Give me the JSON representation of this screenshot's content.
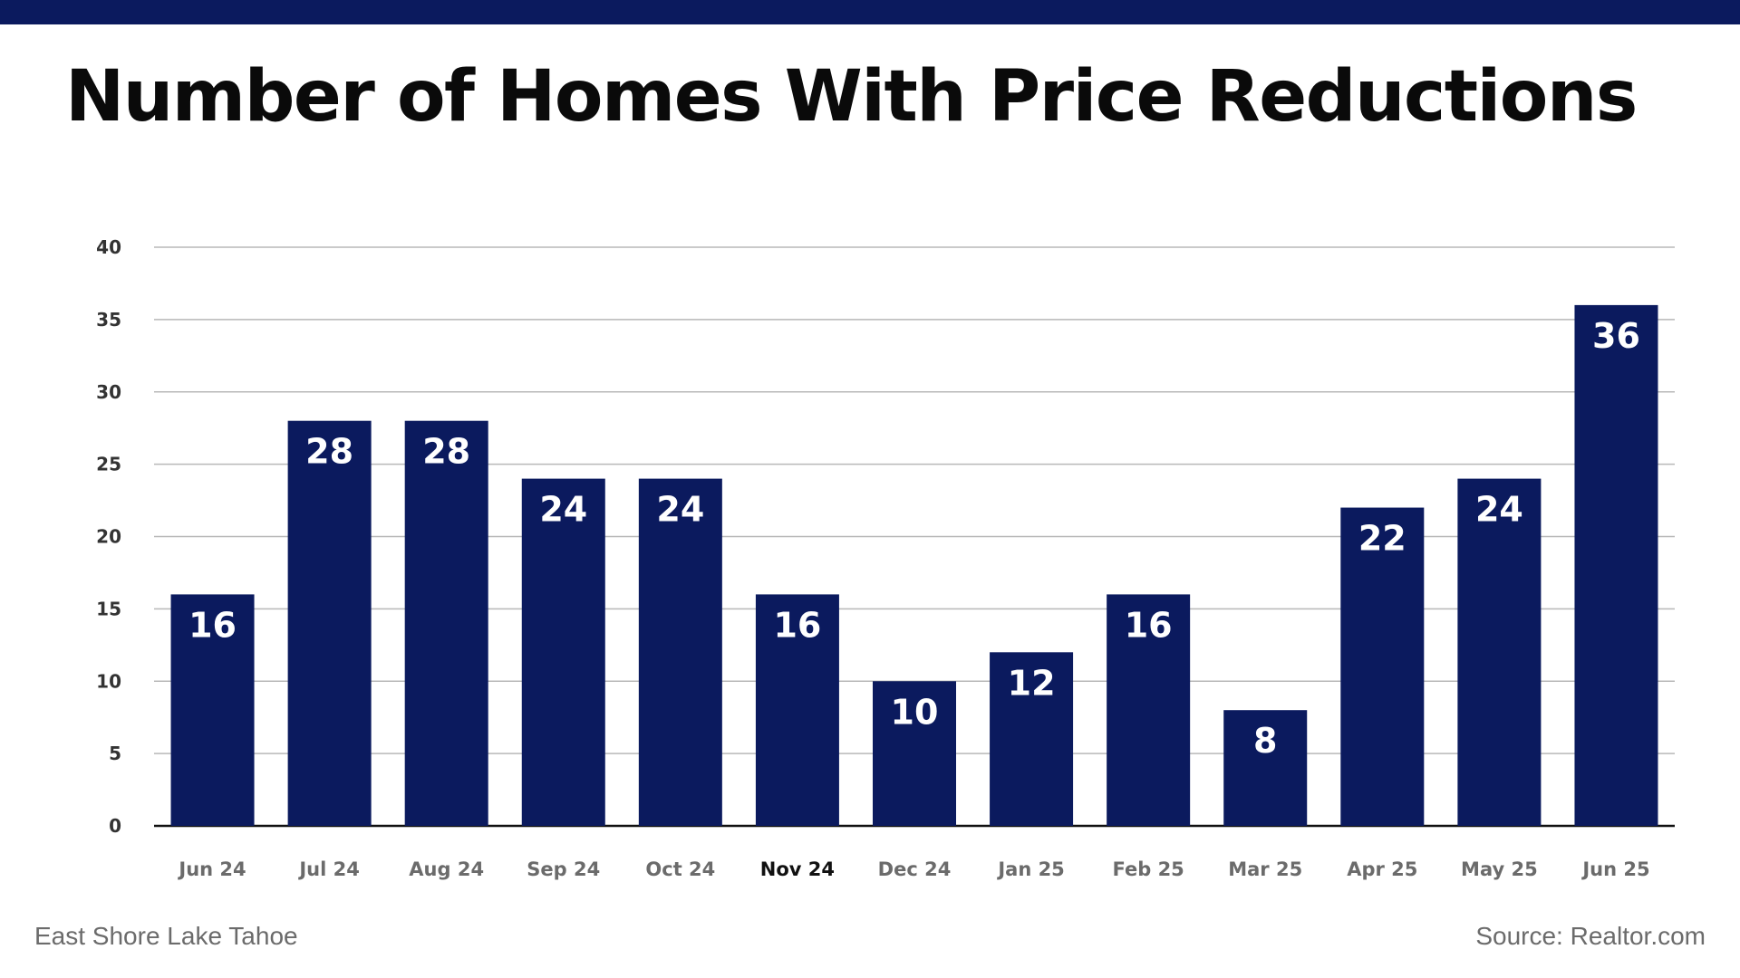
{
  "colors": {
    "bar": "#0b1a5e",
    "top_bar": "#0b1a5e",
    "grid": "#b8b8b8",
    "axis": "#111111",
    "tick_label": "#6b6b6b",
    "tick_label_highlight": "#111111",
    "bar_label": "#ffffff"
  },
  "footer": {
    "left": "East Shore Lake Tahoe",
    "right": "Source: Realtor.com"
  },
  "chart_data": {
    "type": "bar",
    "title": "Number of Homes With Price Reductions",
    "categories": [
      "Jun 24",
      "Jul 24",
      "Aug 24",
      "Sep 24",
      "Oct 24",
      "Nov 24",
      "Dec 24",
      "Jan 25",
      "Feb 25",
      "Mar 25",
      "Apr 25",
      "May 25",
      "Jun 25"
    ],
    "values": [
      16,
      28,
      28,
      24,
      24,
      16,
      10,
      12,
      16,
      8,
      22,
      24,
      36
    ],
    "data_labels": true,
    "highlighted_category": "Nov 24",
    "ylim": [
      0,
      40
    ],
    "yticks": [
      0,
      5,
      10,
      15,
      20,
      25,
      30,
      35,
      40
    ],
    "grid": true,
    "legend": "none"
  }
}
